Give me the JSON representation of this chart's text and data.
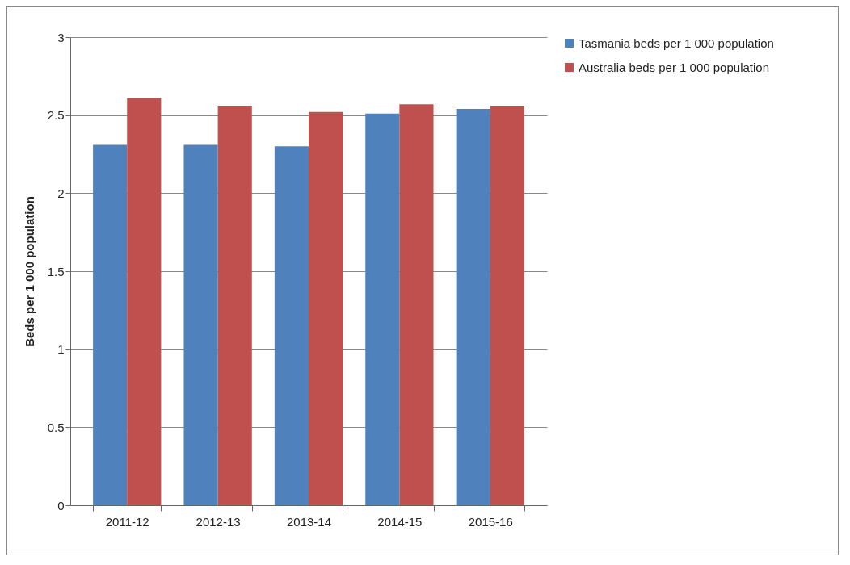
{
  "chart_data": {
    "type": "bar",
    "ylabel": "Beds per 1 000 population",
    "categories": [
      "2011-12",
      "2012-13",
      "2013-14",
      "2014-15",
      "2015-16"
    ],
    "series": [
      {
        "name": "Tasmania beds per 1 000 population",
        "color": "#4f81bd",
        "values": [
          2.31,
          2.31,
          2.3,
          2.51,
          2.54
        ]
      },
      {
        "name": "Australia  beds per 1 000 population",
        "color": "#c0504d",
        "values": [
          2.61,
          2.56,
          2.52,
          2.57,
          2.56
        ]
      }
    ],
    "ylim": [
      0,
      3
    ],
    "yticks": [
      0,
      0.5,
      1,
      1.5,
      2,
      2.5,
      3
    ],
    "grid": "y",
    "legend": "right"
  }
}
